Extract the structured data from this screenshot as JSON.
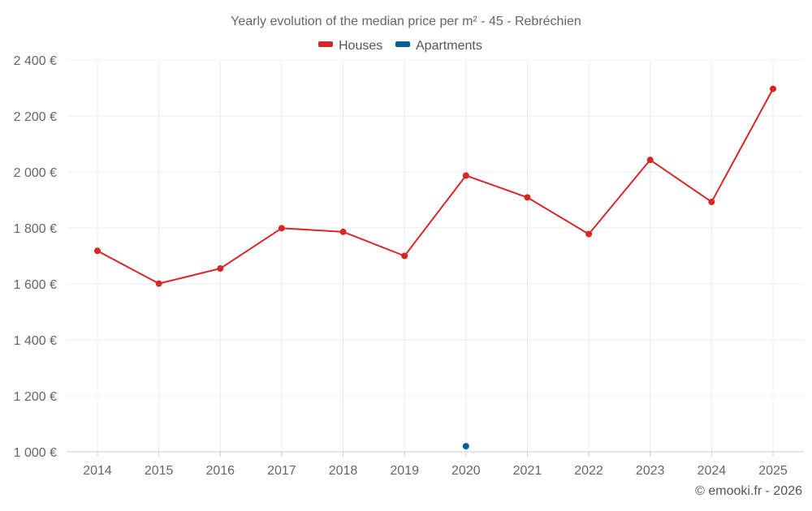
{
  "chart_data": {
    "type": "line",
    "title": "Yearly evolution of the median price per m² - 45 - Rebréchien",
    "categories": [
      "2014",
      "2015",
      "2016",
      "2017",
      "2018",
      "2019",
      "2020",
      "2021",
      "2022",
      "2023",
      "2024",
      "2025"
    ],
    "ylim": [
      1000,
      2400
    ],
    "y_ticks": [
      1000,
      1200,
      1400,
      1600,
      1800,
      2000,
      2200,
      2400
    ],
    "y_tick_labels": [
      "1 000 €",
      "1 200 €",
      "1 400 €",
      "1 600 €",
      "1 800 €",
      "2 000 €",
      "2 200 €",
      "2 400 €"
    ],
    "grid": true,
    "legend_position": "top-center",
    "series": [
      {
        "name": "Houses",
        "color": "#d62728",
        "values": [
          1718,
          1601,
          1655,
          1799,
          1786,
          1700,
          1987,
          1909,
          1778,
          2043,
          1893,
          2297
        ]
      },
      {
        "name": "Apartments",
        "color": "#005f99",
        "values": [
          null,
          null,
          null,
          null,
          null,
          null,
          1020,
          null,
          null,
          null,
          null,
          null
        ]
      }
    ]
  },
  "credit": "© emooki.fr - 2026"
}
